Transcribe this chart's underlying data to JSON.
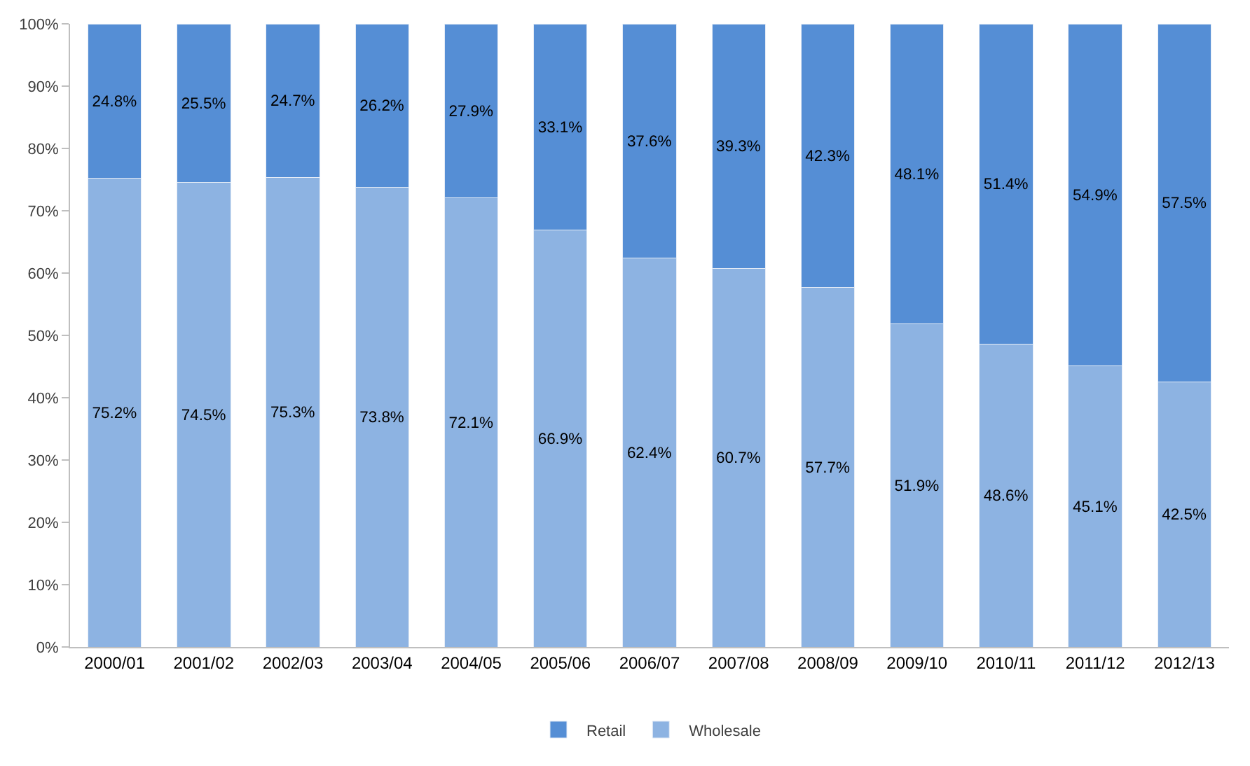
{
  "chart_data": {
    "type": "bar",
    "stacked": true,
    "categories": [
      "2000/01",
      "2001/02",
      "2002/03",
      "2003/04",
      "2004/05",
      "2005/06",
      "2006/07",
      "2007/08",
      "2008/09",
      "2009/10",
      "2010/11",
      "2011/12",
      "2012/13"
    ],
    "series": [
      {
        "name": "Wholesale",
        "color": "#8db3e2",
        "values": [
          75.2,
          74.5,
          75.3,
          73.8,
          72.1,
          66.9,
          62.4,
          60.7,
          57.7,
          51.9,
          48.6,
          45.1,
          42.5
        ],
        "value_labels": [
          "75.2%",
          "74.5%",
          "75.3%",
          "73.8%",
          "72.1%",
          "66.9%",
          "62.4%",
          "60.7%",
          "57.7%",
          "51.9%",
          "48.6%",
          "45.1%",
          "42.5%"
        ]
      },
      {
        "name": "Retail",
        "color": "#558ed5",
        "values": [
          24.8,
          25.5,
          24.7,
          26.2,
          27.9,
          33.1,
          37.6,
          39.3,
          42.3,
          48.1,
          51.4,
          54.9,
          57.5
        ],
        "value_labels": [
          "24.8%",
          "25.5%",
          "24.7%",
          "26.2%",
          "27.9%",
          "33.1%",
          "37.6%",
          "39.3%",
          "42.3%",
          "48.1%",
          "51.4%",
          "54.9%",
          "57.5%"
        ]
      }
    ],
    "ylim": [
      0,
      100
    ],
    "yticks": [
      {
        "value": 0,
        "label": "0%"
      },
      {
        "value": 10,
        "label": "10%"
      },
      {
        "value": 20,
        "label": "20%"
      },
      {
        "value": 30,
        "label": "30%"
      },
      {
        "value": 40,
        "label": "40%"
      },
      {
        "value": 50,
        "label": "50%"
      },
      {
        "value": 60,
        "label": "60%"
      },
      {
        "value": 70,
        "label": "70%"
      },
      {
        "value": 80,
        "label": "80%"
      },
      {
        "value": 90,
        "label": "90%"
      },
      {
        "value": 100,
        "label": "100%"
      }
    ],
    "legend": "bottom"
  }
}
